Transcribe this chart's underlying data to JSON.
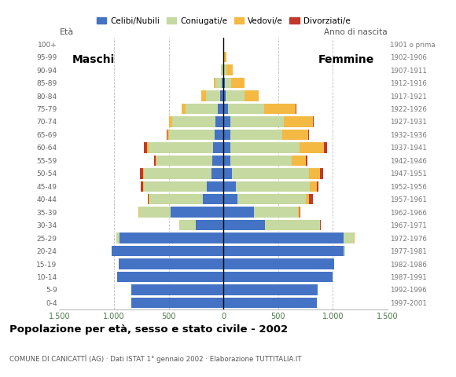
{
  "age_groups": [
    "0-4",
    "5-9",
    "10-14",
    "15-19",
    "20-24",
    "25-29",
    "30-34",
    "35-39",
    "40-44",
    "45-49",
    "50-54",
    "55-59",
    "60-64",
    "65-69",
    "70-74",
    "75-79",
    "80-84",
    "85-89",
    "90-94",
    "95-99",
    "100+"
  ],
  "birth_years": [
    "1997-2001",
    "1992-1996",
    "1987-1991",
    "1982-1986",
    "1977-1981",
    "1972-1976",
    "1967-1971",
    "1962-1966",
    "1957-1961",
    "1952-1956",
    "1947-1951",
    "1942-1946",
    "1937-1941",
    "1932-1936",
    "1927-1931",
    "1922-1926",
    "1917-1921",
    "1912-1916",
    "1907-1911",
    "1902-1906",
    "1901 o prima"
  ],
  "males": {
    "celibe": [
      840,
      840,
      970,
      960,
      1020,
      950,
      250,
      480,
      190,
      150,
      110,
      100,
      95,
      80,
      75,
      55,
      30,
      15,
      5,
      0,
      0
    ],
    "coniugato": [
      0,
      0,
      0,
      0,
      5,
      30,
      155,
      290,
      490,
      580,
      620,
      510,
      590,
      420,
      390,
      290,
      130,
      55,
      15,
      2,
      0
    ],
    "vedovo": [
      0,
      0,
      0,
      0,
      0,
      0,
      0,
      5,
      5,
      5,
      5,
      10,
      10,
      15,
      30,
      35,
      40,
      20,
      5,
      0,
      0
    ],
    "divorziato": [
      0,
      0,
      0,
      0,
      0,
      0,
      0,
      5,
      5,
      20,
      30,
      15,
      30,
      5,
      5,
      0,
      0,
      0,
      0,
      0,
      0
    ]
  },
  "females": {
    "nubile": [
      850,
      860,
      1000,
      1010,
      1100,
      1100,
      380,
      280,
      130,
      110,
      80,
      65,
      65,
      60,
      60,
      40,
      20,
      10,
      5,
      0,
      0
    ],
    "coniugata": [
      0,
      0,
      0,
      0,
      10,
      90,
      500,
      400,
      620,
      680,
      700,
      560,
      630,
      480,
      490,
      330,
      175,
      60,
      20,
      5,
      0
    ],
    "vedova": [
      0,
      0,
      0,
      0,
      0,
      5,
      5,
      15,
      35,
      60,
      100,
      130,
      220,
      235,
      270,
      290,
      130,
      120,
      60,
      20,
      5
    ],
    "divorziata": [
      0,
      0,
      0,
      0,
      0,
      5,
      5,
      5,
      30,
      20,
      30,
      15,
      30,
      5,
      5,
      5,
      0,
      0,
      0,
      0,
      0
    ]
  },
  "colors": {
    "celibe": "#4472c4",
    "coniugato": "#c5d9a0",
    "vedovo": "#f4b942",
    "divorziato": "#c0392b"
  },
  "xlim": 1500,
  "title": "Popolazione per età, sesso e stato civile - 2002",
  "subtitle": "COMUNE DI CANICATTÌ (AG) · Dati ISTAT 1° gennaio 2002 · Elaborazione TUTTITALIA.IT",
  "legend_labels": [
    "Celibi/Nubili",
    "Coniugati/e",
    "Vedovi/e",
    "Divorziati/e"
  ],
  "background_color": "#ffffff"
}
